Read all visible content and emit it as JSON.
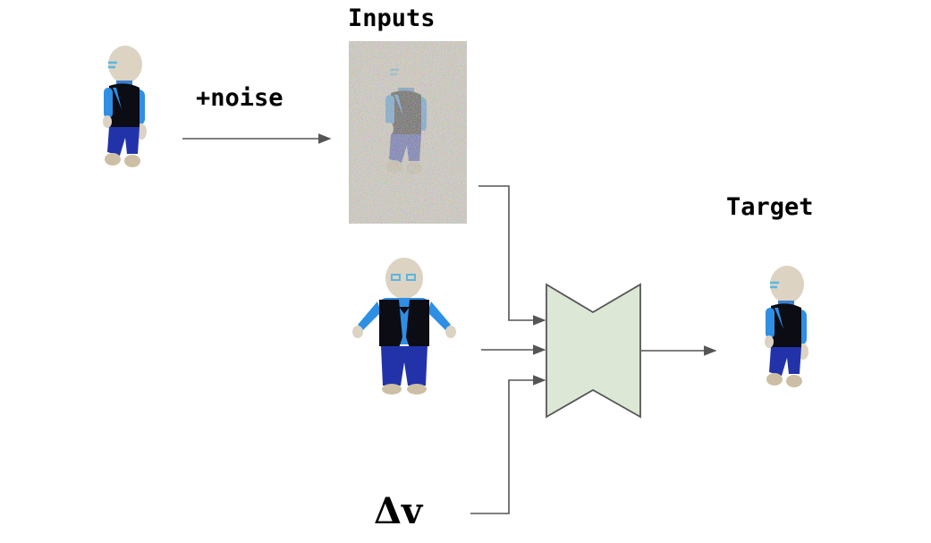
{
  "labels": {
    "inputs": "Inputs",
    "noise": "+noise",
    "target": "Target",
    "delta_v": "Δv"
  },
  "colors": {
    "network_fill": "#dde7d6",
    "network_stroke": "#555555",
    "arrow": "#555555",
    "skin": "#ddd3c3",
    "vest": "#0c0c14",
    "sleeve": "#2f8fe4",
    "shirt": "#1f5fbf",
    "pants": "#2233aa",
    "shoe": "#cdbfa5"
  },
  "nodes": [
    "source-figure-image",
    "noisy-input-image",
    "reference-figure-image",
    "network-block",
    "target-figure-image"
  ]
}
